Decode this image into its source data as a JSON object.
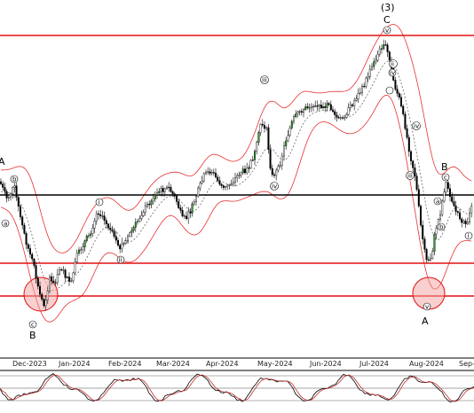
{
  "chart_data": {
    "type": "candlestick",
    "x_ticks": [
      "Dec-2023",
      "Jan-2024",
      "Feb-2024",
      "Mar-2024",
      "Apr-2024",
      "May-2024",
      "Jun-2024",
      "Jul-2024",
      "Aug-2024",
      "Sep-"
    ],
    "wave_labels": {
      "top_degree": "(3)",
      "top_letter": "C",
      "top_circle": "v",
      "B_left": "B",
      "B_left_circle": "c",
      "A_right": "A",
      "A_right_circle": "v",
      "B_right": "B",
      "B_right_circle": "c",
      "A_left": "A",
      "left_b": "b",
      "left_a": "a",
      "jan_i": "i",
      "jan_ii": "ii",
      "apr_iii": "iii",
      "apr_iv": "iv",
      "jul_iv_circle": "iv",
      "jul_i_circle": "i",
      "jul_ii": "ii",
      "aug_iv": "iv",
      "aug_iii": "iii",
      "sep_a": "a",
      "sep_b": "b",
      "sep_i": "i"
    },
    "colors": {
      "horizontal_red": "#e01010",
      "horizontal_black": "#000000",
      "bollinger": "#e83030",
      "ma": "#555555",
      "candle": "#000000",
      "up_accent": "#2e9e2e",
      "oscillator_1": "#000000",
      "oscillator_2": "#c03030",
      "highlight_circle": "#f4a0a0"
    },
    "indicators": [
      "bollinger-bands",
      "moving-average",
      "stochastic-oscillator"
    ],
    "grid": false
  }
}
